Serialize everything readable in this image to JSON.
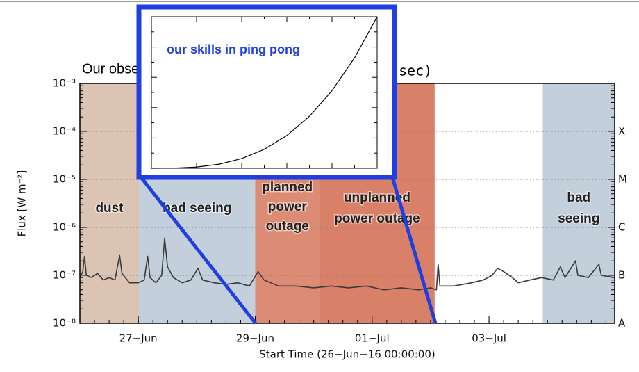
{
  "slide_title": "Our observing",
  "chart_data": [
    {
      "type": "line",
      "title": "sec)",
      "y_label": "Flux [W m⁻²]",
      "x_label": "Start Time (26−Jun−16 00:00:00)",
      "log_y": true,
      "grid": true,
      "xlim": [
        0,
        9.15
      ],
      "ylim": [
        1e-08,
        0.001
      ],
      "xticks": [
        {
          "value": 1,
          "label": "27−Jun"
        },
        {
          "value": 3,
          "label": "29−Jun"
        },
        {
          "value": 5,
          "label": "01−Jul"
        },
        {
          "value": 7,
          "label": "03−Jul"
        }
      ],
      "yticks": [
        {
          "value": 0.001,
          "label": "10⁻³"
        },
        {
          "value": 0.0001,
          "label": "10⁻⁴"
        },
        {
          "value": 1e-05,
          "label": "10⁻⁵"
        },
        {
          "value": 1e-06,
          "label": "10⁻⁶"
        },
        {
          "value": 1e-07,
          "label": "10⁻⁷"
        },
        {
          "value": 1e-08,
          "label": "10⁻⁸"
        }
      ],
      "y2lim": [
        1e-08,
        0.001
      ],
      "y2ticks": [
        {
          "value": 0.0001,
          "label": "X"
        },
        {
          "value": 1e-05,
          "label": "M"
        },
        {
          "value": 1e-06,
          "label": "C"
        },
        {
          "value": 1e-07,
          "label": "B"
        },
        {
          "value": 1e-08,
          "label": "A"
        }
      ],
      "regions": [
        {
          "label": [
            "dust"
          ],
          "x": [
            0,
            1.01
          ],
          "color": "#dcc4b4"
        },
        {
          "label": [
            "bad seeing"
          ],
          "x": [
            1.01,
            3.0
          ],
          "color": "#c3cfdb"
        },
        {
          "label": [
            "planned",
            "power",
            "outage"
          ],
          "x": [
            3.0,
            4.1
          ],
          "color": "#dc8c74"
        },
        {
          "label": [
            "unplanned",
            "power outage"
          ],
          "x": [
            4.1,
            6.07
          ],
          "color": "#d98068"
        },
        {
          "label": [
            "bad",
            "seeing"
          ],
          "x": [
            7.92,
            9.15
          ],
          "color": "#c3cfdb"
        }
      ],
      "series": [
        {
          "name": "flux",
          "color": "#3a3a3a",
          "x": [
            0,
            0.05,
            0.08,
            0.11,
            0.2,
            0.3,
            0.4,
            0.5,
            0.6,
            0.68,
            0.72,
            0.85,
            1.0,
            1.1,
            1.16,
            1.2,
            1.3,
            1.4,
            1.45,
            1.5,
            1.6,
            1.75,
            1.9,
            2.02,
            2.1,
            2.3,
            2.5,
            2.7,
            2.9,
            3.05,
            3.15,
            3.4,
            3.7,
            4.0,
            4.3,
            4.6,
            4.9,
            5.2,
            5.5,
            5.8,
            6.0,
            6.1,
            6.13,
            6.16,
            6.4,
            6.7,
            6.9,
            7.05,
            7.15,
            7.25,
            7.4,
            7.5,
            7.7,
            7.9,
            8.1,
            8.22,
            8.3,
            8.48,
            8.52,
            8.7,
            8.88,
            8.92,
            9.15
          ],
          "values": [
            9e-08,
            1.2e-07,
            2.5e-07,
            1e-07,
            9e-08,
            1.1e-07,
            8e-08,
            9e-08,
            8e-08,
            2.6e-07,
            1.1e-07,
            7e-08,
            7e-08,
            8e-08,
            2.5e-07,
            9e-08,
            7e-08,
            1e-07,
            6e-07,
            1.5e-07,
            9e-08,
            7e-08,
            8e-08,
            1.4e-07,
            8e-08,
            7e-08,
            6.5e-08,
            7e-08,
            6e-08,
            1.2e-07,
            8e-08,
            6e-08,
            6e-08,
            5.5e-08,
            6e-08,
            5.5e-08,
            6e-08,
            5e-08,
            5.5e-08,
            5e-08,
            5.5e-08,
            5e-08,
            1.7e-07,
            6e-08,
            6e-08,
            7e-08,
            8e-08,
            1e-07,
            1.4e-07,
            1.2e-07,
            9e-08,
            7e-08,
            8e-08,
            9e-08,
            8e-08,
            1.5e-07,
            9e-08,
            2e-07,
            1e-07,
            9e-08,
            1.7e-07,
            1e-07,
            9e-08
          ]
        }
      ]
    },
    {
      "type": "line",
      "title": "our skills in ping pong",
      "color": "#1f3fe0",
      "xlim": [
        0,
        1
      ],
      "ylim": [
        0,
        1
      ],
      "x": [
        0,
        0.1,
        0.2,
        0.3,
        0.4,
        0.5,
        0.6,
        0.7,
        0.8,
        0.9,
        1
      ],
      "values": [
        0,
        0.001,
        0.008,
        0.027,
        0.064,
        0.125,
        0.216,
        0.343,
        0.512,
        0.729,
        1
      ]
    }
  ]
}
